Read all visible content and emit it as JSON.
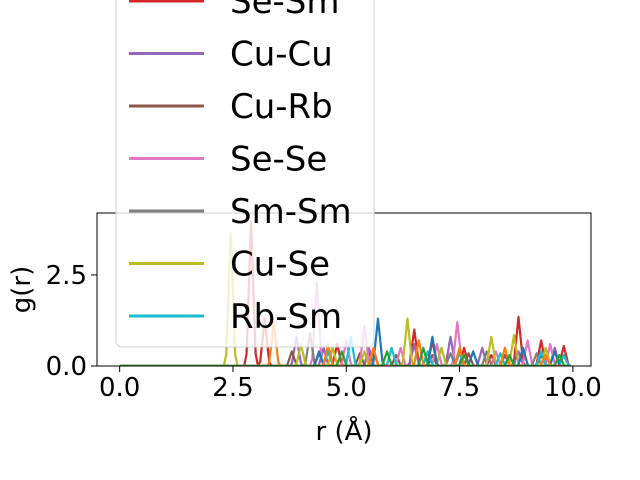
{
  "chart_data": {
    "type": "line",
    "xlabel": "r (Å)",
    "ylabel": "g(r)",
    "xlim": [
      -0.5,
      10.4
    ],
    "ylim": [
      0.0,
      4.2
    ],
    "x_ticks": [
      0.0,
      2.5,
      5.0,
      7.5,
      10.0
    ],
    "x_tick_labels": [
      "0.0",
      "2.5",
      "5.0",
      "7.5",
      "10.0"
    ],
    "y_ticks": [
      0.0,
      2.5
    ],
    "y_tick_labels": [
      "0.0",
      "2.5"
    ],
    "grid": false,
    "legend_position": "upper-left, overflowing above the axes",
    "series": [
      {
        "name": "Se-Sm",
        "color": "#d62728",
        "peaks": [
          [
            2.9,
            3.95
          ],
          [
            3.2,
            1.3
          ],
          [
            4.8,
            0.6
          ],
          [
            5.5,
            0.4
          ],
          [
            6.5,
            1.0
          ],
          [
            6.9,
            0.7
          ],
          [
            7.6,
            0.5
          ],
          [
            8.2,
            0.3
          ],
          [
            8.8,
            1.35
          ],
          [
            9.3,
            0.7
          ],
          [
            9.8,
            0.55
          ]
        ]
      },
      {
        "name": "Cu-Cu",
        "color": "#9467bd",
        "peaks": [
          [
            3.9,
            0.8
          ],
          [
            4.5,
            0.5
          ],
          [
            5.5,
            0.5
          ],
          [
            6.5,
            0.6
          ],
          [
            7.3,
            0.8
          ],
          [
            8.0,
            0.5
          ],
          [
            8.8,
            0.4
          ],
          [
            9.6,
            0.5
          ]
        ]
      },
      {
        "name": "Cu-Rb",
        "color": "#8c564b",
        "peaks": [
          [
            3.8,
            0.4
          ],
          [
            4.4,
            0.35
          ],
          [
            5.3,
            0.35
          ],
          [
            6.1,
            0.3
          ],
          [
            6.9,
            0.3
          ],
          [
            7.7,
            0.35
          ],
          [
            8.5,
            0.3
          ],
          [
            9.3,
            0.3
          ]
        ]
      },
      {
        "name": "Se-Se",
        "color": "#e377c2",
        "peaks": [
          [
            4.35,
            2.3
          ],
          [
            5.0,
            0.7
          ],
          [
            5.4,
            1.1
          ],
          [
            6.2,
            0.5
          ],
          [
            7.0,
            0.6
          ],
          [
            7.45,
            1.2
          ],
          [
            8.3,
            0.4
          ],
          [
            9.0,
            0.7
          ],
          [
            9.5,
            0.6
          ]
        ]
      },
      {
        "name": "Sm-Sm",
        "color": "#7f7f7f",
        "peaks": [
          [
            4.2,
            0.9
          ],
          [
            5.6,
            0.4
          ],
          [
            6.8,
            0.4
          ],
          [
            7.3,
            0.35
          ],
          [
            8.1,
            0.4
          ],
          [
            9.2,
            0.35
          ]
        ]
      },
      {
        "name": "Cu-Se",
        "color": "#bcbd22",
        "peaks": [
          [
            2.45,
            3.65
          ],
          [
            4.0,
            0.6
          ],
          [
            4.7,
            0.5
          ],
          [
            5.4,
            0.4
          ],
          [
            6.35,
            1.3
          ],
          [
            7.1,
            0.5
          ],
          [
            8.2,
            0.8
          ],
          [
            8.7,
            0.85
          ],
          [
            9.4,
            0.5
          ]
        ]
      },
      {
        "name": "Rb-Sm",
        "color": "#17becf",
        "peaks": [
          [
            4.6,
            0.4
          ],
          [
            5.1,
            0.8
          ],
          [
            6.0,
            0.5
          ],
          [
            6.8,
            0.4
          ],
          [
            7.5,
            0.35
          ],
          [
            8.4,
            0.35
          ],
          [
            9.3,
            0.4
          ],
          [
            9.8,
            0.3
          ]
        ]
      },
      {
        "name": "",
        "color": "#1f77b4",
        "peaks": [
          [
            4.4,
            0.4
          ],
          [
            5.7,
            1.3
          ],
          [
            6.9,
            0.8
          ],
          [
            7.8,
            0.4
          ],
          [
            8.9,
            0.5
          ],
          [
            9.6,
            0.4
          ]
        ]
      },
      {
        "name": "",
        "color": "#ff7f0e",
        "peaks": [
          [
            3.4,
            1.2
          ],
          [
            4.6,
            0.6
          ],
          [
            5.6,
            0.5
          ],
          [
            6.6,
            0.7
          ],
          [
            7.5,
            0.5
          ],
          [
            8.5,
            0.5
          ],
          [
            9.4,
            0.3
          ]
        ]
      },
      {
        "name": "",
        "color": "#2ca02c",
        "peaks": [
          [
            4.9,
            0.4
          ],
          [
            5.9,
            0.4
          ],
          [
            6.7,
            0.5
          ],
          [
            7.6,
            0.3
          ],
          [
            8.6,
            0.3
          ],
          [
            9.7,
            0.3
          ]
        ]
      }
    ]
  }
}
